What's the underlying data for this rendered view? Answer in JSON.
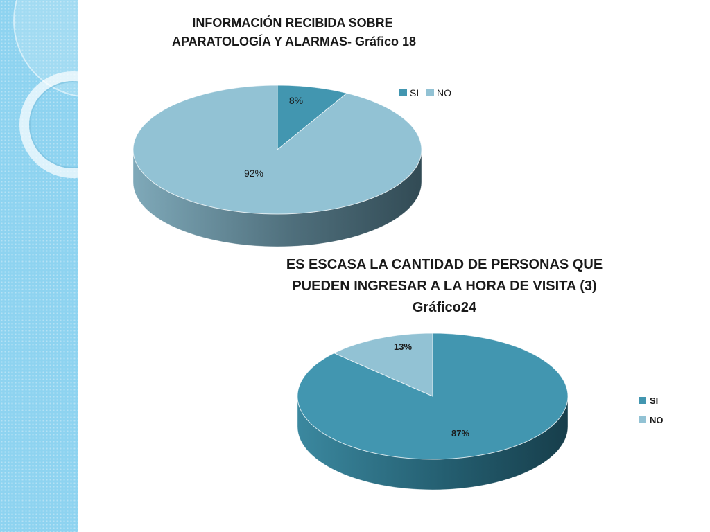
{
  "chart_data": [
    {
      "type": "pie",
      "title_lines": [
        "INFORMACIÓN RECIBIDA SOBRE",
        "APARATOLOGÍA Y ALARMAS- Gráfico 18"
      ],
      "categories": [
        "SI",
        "NO"
      ],
      "values": [
        8,
        92
      ],
      "labels": [
        "8%",
        "92%"
      ],
      "legend": [
        "SI",
        "NO"
      ],
      "legend_position": "top-right",
      "colors": [
        "#4296b0",
        "#92c2d4"
      ]
    },
    {
      "type": "pie",
      "title_lines": [
        "ES ESCASA LA CANTIDAD DE PERSONAS QUE",
        "PUEDEN INGRESAR A LA HORA DE VISITA (3)",
        "Gráfico24"
      ],
      "categories": [
        "SI",
        "NO"
      ],
      "values": [
        87,
        13
      ],
      "labels": [
        "87%",
        "13%"
      ],
      "legend": [
        "SI",
        "NO"
      ],
      "legend_position": "right",
      "colors": [
        "#4296b0",
        "#92c2d4"
      ]
    }
  ]
}
